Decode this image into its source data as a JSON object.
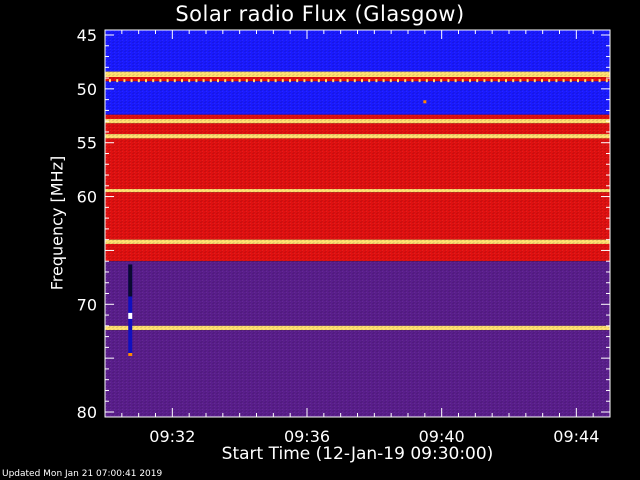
{
  "chart_data": {
    "type": "heatmap",
    "title": "Solar radio Flux (Glasgow)",
    "xlabel": "Start Time (12-Jan-19 09:30:00)",
    "ylabel": "Frequency [MHz]",
    "x_ticks": [
      "09:32",
      "09:36",
      "09:40",
      "09:44"
    ],
    "x_tick_minutes": [
      32,
      36,
      40,
      44
    ],
    "x_range_minutes": [
      30.0,
      45.0
    ],
    "y_ticks": [
      45,
      50,
      55,
      60,
      65,
      70,
      75,
      80
    ],
    "y_tick_labels": [
      "45",
      "50",
      "55",
      "60",
      "",
      "70",
      "",
      "80"
    ],
    "y_range_mhz": [
      45,
      80
    ],
    "colors": {
      "background": "#000000",
      "low": "#1a1aff",
      "mid": "#5a1e8c",
      "high": "#e01010",
      "peak": "#ffe070"
    },
    "bands": [
      {
        "from_mhz": 45.0,
        "to_mhz": 48.4,
        "level": "low"
      },
      {
        "from_mhz": 48.4,
        "to_mhz": 48.9,
        "level": "peak"
      },
      {
        "from_mhz": 48.9,
        "to_mhz": 49.3,
        "level": "high"
      },
      {
        "from_mhz": 49.3,
        "to_mhz": 52.4,
        "level": "low"
      },
      {
        "from_mhz": 52.4,
        "to_mhz": 52.8,
        "level": "high"
      },
      {
        "from_mhz": 52.8,
        "to_mhz": 53.2,
        "level": "peak"
      },
      {
        "from_mhz": 53.2,
        "to_mhz": 54.2,
        "level": "high"
      },
      {
        "from_mhz": 54.2,
        "to_mhz": 54.6,
        "level": "peak"
      },
      {
        "from_mhz": 54.6,
        "to_mhz": 59.3,
        "level": "high"
      },
      {
        "from_mhz": 59.3,
        "to_mhz": 59.6,
        "level": "peak"
      },
      {
        "from_mhz": 59.6,
        "to_mhz": 64.0,
        "level": "high"
      },
      {
        "from_mhz": 64.0,
        "to_mhz": 64.4,
        "level": "peak"
      },
      {
        "from_mhz": 64.4,
        "to_mhz": 66.0,
        "level": "high"
      },
      {
        "from_mhz": 66.0,
        "to_mhz": 72.0,
        "level": "mid"
      },
      {
        "from_mhz": 72.0,
        "to_mhz": 72.4,
        "level": "peak"
      },
      {
        "from_mhz": 72.4,
        "to_mhz": 80.0,
        "level": "mid"
      }
    ],
    "features": [
      {
        "name": "burst-column",
        "minute": 30.75,
        "from_mhz": 66.3,
        "to_mhz": 74.8
      },
      {
        "name": "spike",
        "minute": 39.5,
        "mhz": 51.2
      }
    ],
    "grid": false,
    "legend": "none"
  },
  "footer": "Updated Mon Jan 21 07:00:41 2019"
}
